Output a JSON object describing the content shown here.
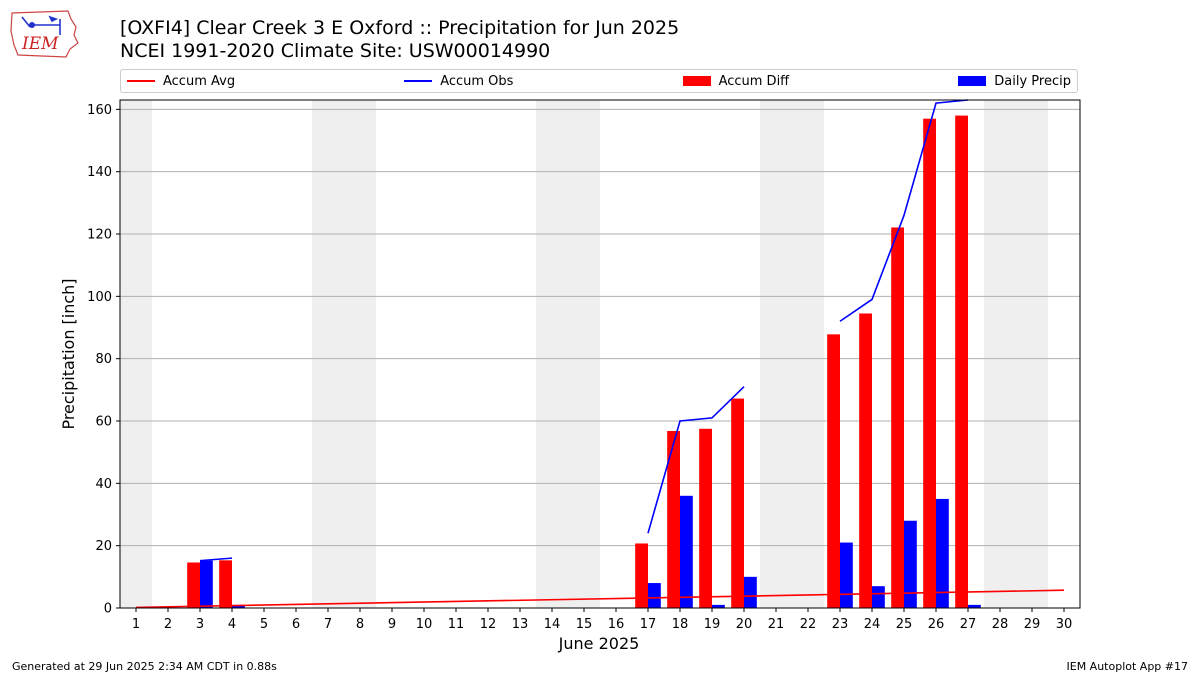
{
  "header": {
    "title": "[OXFI4] Clear Creek 3 E Oxford :: Precipitation for Jun 2025",
    "subtitle": "NCEI 1991-2020 Climate Site: USW00014990"
  },
  "logo": {
    "text": "IEM",
    "icon": "iowa-state-outline-icon"
  },
  "footer": {
    "left": "Generated at 29 Jun 2025 2:34 AM CDT in 0.88s",
    "right": "IEM Autoplot App #17"
  },
  "colors": {
    "accum_avg": "#ff0000",
    "accum_obs": "#0000ff",
    "accum_diff": "#ff0000",
    "daily_precip": "#0000ff",
    "weekend_shade": "#efefef",
    "grid": "#b0b0b0"
  },
  "chart_data": {
    "type": "bar",
    "title": "[OXFI4] Clear Creek 3 E Oxford :: Precipitation for Jun 2025",
    "xlabel": "June 2025",
    "ylabel": "Precipitation [inch]",
    "x": [
      1,
      2,
      3,
      4,
      5,
      6,
      7,
      8,
      9,
      10,
      11,
      12,
      13,
      14,
      15,
      16,
      17,
      18,
      19,
      20,
      21,
      22,
      23,
      24,
      25,
      26,
      27,
      28,
      29,
      30
    ],
    "xlim": [
      0.5,
      30.5
    ],
    "ylim": [
      0,
      163
    ],
    "yticks": [
      0,
      20,
      40,
      60,
      80,
      100,
      120,
      140,
      160
    ],
    "grid": true,
    "legend_position": "top",
    "weekend_shading": [
      [
        0.5,
        1.5
      ],
      [
        6.5,
        8.5
      ],
      [
        13.5,
        15.5
      ],
      [
        20.5,
        22.5
      ],
      [
        27.5,
        29.5
      ]
    ],
    "series": [
      {
        "name": "Accum Avg",
        "type": "line",
        "x": [
          1,
          30
        ],
        "values": [
          0.2,
          5.7
        ]
      },
      {
        "name": "Accum Obs",
        "type": "line",
        "segments": [
          {
            "x": [
              3,
              4
            ],
            "values": [
              15.2,
              16.0
            ]
          },
          {
            "x": [
              17,
              18,
              19,
              20
            ],
            "values": [
              24,
              60,
              61,
              71
            ]
          },
          {
            "x": [
              23,
              24,
              25,
              26,
              27
            ],
            "values": [
              92,
              99,
              126,
              162,
              163
            ]
          }
        ]
      },
      {
        "name": "Accum Diff",
        "type": "bar",
        "x": [
          3,
          4,
          17,
          18,
          19,
          20,
          23,
          24,
          25,
          26,
          27
        ],
        "values": [
          14.6,
          15.3,
          20.7,
          56.8,
          57.5,
          67.2,
          87.8,
          94.5,
          122.1,
          157.0,
          158.0
        ]
      },
      {
        "name": "Daily Precip",
        "type": "bar",
        "x": [
          3,
          4,
          17,
          18,
          19,
          20,
          23,
          24,
          25,
          26,
          27
        ],
        "values": [
          15.2,
          1.0,
          8.0,
          36.0,
          1.0,
          10.0,
          21.0,
          7.0,
          28.0,
          35.0,
          1.0
        ]
      }
    ]
  }
}
